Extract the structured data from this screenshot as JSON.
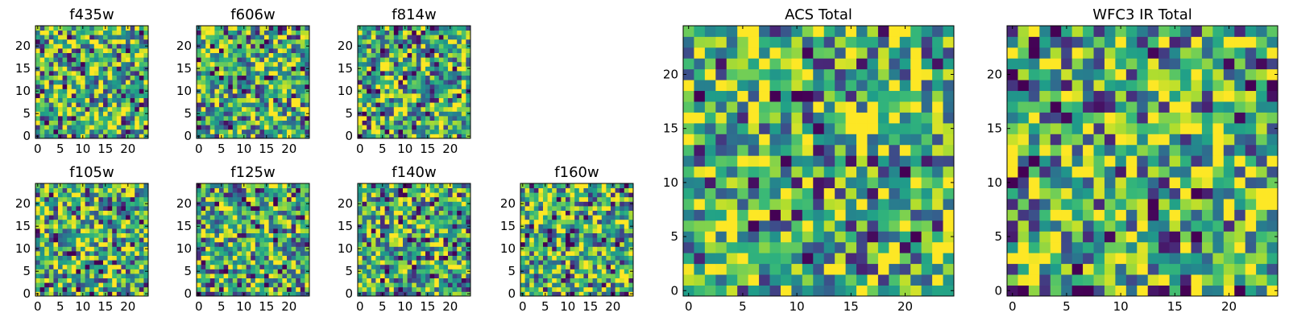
{
  "chart_data": [
    {
      "type": "heatmap",
      "title": "f435w",
      "xlim": [
        0,
        24
      ],
      "ylim": [
        0,
        24
      ],
      "xticks": [
        0,
        5,
        10,
        15,
        20
      ],
      "yticks": [
        0,
        5,
        10,
        15,
        20
      ],
      "colormap": "viridis",
      "seed": 11
    },
    {
      "type": "heatmap",
      "title": "f606w",
      "xlim": [
        0,
        24
      ],
      "ylim": [
        0,
        24
      ],
      "xticks": [
        0,
        5,
        10,
        15,
        20
      ],
      "yticks": [
        0,
        5,
        10,
        15,
        20
      ],
      "colormap": "viridis",
      "seed": 23
    },
    {
      "type": "heatmap",
      "title": "f814w",
      "xlim": [
        0,
        24
      ],
      "ylim": [
        0,
        24
      ],
      "xticks": [
        0,
        5,
        10,
        15,
        20
      ],
      "yticks": [
        0,
        5,
        10,
        15,
        20
      ],
      "colormap": "viridis",
      "seed": 37
    },
    {
      "type": "heatmap",
      "title": "f105w",
      "xlim": [
        0,
        24
      ],
      "ylim": [
        0,
        24
      ],
      "xticks": [
        0,
        5,
        10,
        15,
        20
      ],
      "yticks": [
        0,
        5,
        10,
        15,
        20
      ],
      "colormap": "viridis",
      "seed": 41
    },
    {
      "type": "heatmap",
      "title": "f125w",
      "xlim": [
        0,
        24
      ],
      "ylim": [
        0,
        24
      ],
      "xticks": [
        0,
        5,
        10,
        15,
        20
      ],
      "yticks": [
        0,
        5,
        10,
        15,
        20
      ],
      "colormap": "viridis",
      "seed": 53
    },
    {
      "type": "heatmap",
      "title": "f140w",
      "xlim": [
        0,
        24
      ],
      "ylim": [
        0,
        24
      ],
      "xticks": [
        0,
        5,
        10,
        15,
        20
      ],
      "yticks": [
        0,
        5,
        10,
        15,
        20
      ],
      "colormap": "viridis",
      "seed": 67
    },
    {
      "type": "heatmap",
      "title": "f160w",
      "xlim": [
        0,
        24
      ],
      "ylim": [
        0,
        24
      ],
      "xticks": [
        0,
        5,
        10,
        15,
        20
      ],
      "yticks": [
        0,
        5,
        10,
        15,
        20
      ],
      "colormap": "viridis",
      "seed": 71
    },
    {
      "type": "heatmap",
      "title": "ACS Total",
      "xlim": [
        0,
        24
      ],
      "ylim": [
        0,
        24
      ],
      "xticks": [
        0,
        5,
        10,
        15,
        20
      ],
      "yticks": [
        0,
        5,
        10,
        15,
        20
      ],
      "colormap": "viridis",
      "seed": 89
    },
    {
      "type": "heatmap",
      "title": "WFC3 IR Total",
      "xlim": [
        0,
        24
      ],
      "ylim": [
        0,
        24
      ],
      "xticks": [
        0,
        5,
        10,
        15,
        20
      ],
      "yticks": [
        0,
        5,
        10,
        15,
        20
      ],
      "colormap": "viridis",
      "seed": 97
    }
  ]
}
